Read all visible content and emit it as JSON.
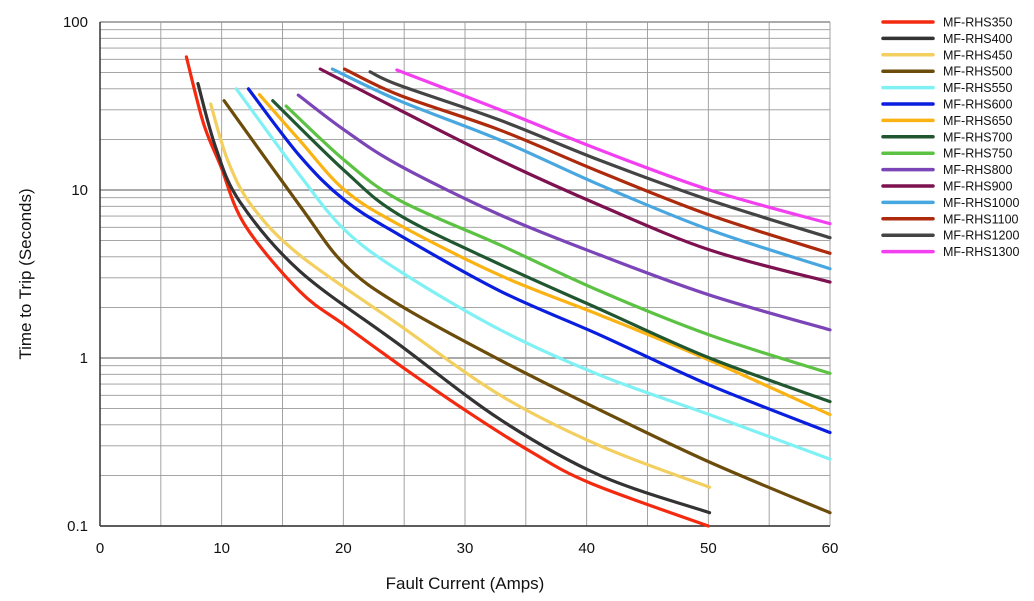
{
  "chart_data": {
    "type": "line",
    "title": "",
    "xlabel": "Fault Current (Amps)",
    "ylabel": "Time to Trip (Seconds)",
    "xlim": [
      0,
      60
    ],
    "ylim": [
      0.1,
      100
    ],
    "yscale": "log",
    "grid": true,
    "legend": "right",
    "xticks": [
      "0",
      "10",
      "20",
      "30",
      "40",
      "50",
      "60"
    ],
    "yticks": [
      "0.1",
      "1",
      "10",
      "100"
    ],
    "series": [
      {
        "name": "MF-RHS350",
        "color": "#f42a10",
        "x": [
          7.1,
          8.5,
          9.9,
          11.9,
          16.4,
          20.1,
          24.6,
          30,
          35.3,
          40.3,
          50
        ],
        "y": [
          62,
          25,
          14,
          6.2,
          2.5,
          1.57,
          0.91,
          0.49,
          0.28,
          0.18,
          0.1
        ]
      },
      {
        "name": "MF-RHS400",
        "color": "#333333",
        "x": [
          8.05,
          9.5,
          11.5,
          16.4,
          24.6,
          32.9,
          41.1,
          50.1
        ],
        "y": [
          43,
          18,
          8.5,
          3.3,
          1.2,
          0.43,
          0.2,
          0.12
        ]
      },
      {
        "name": "MF-RHS450",
        "color": "#f2cf5e",
        "x": [
          9.1,
          10.5,
          12.5,
          16.4,
          24.6,
          32.9,
          41.1,
          50.1
        ],
        "y": [
          32.5,
          15,
          8,
          4.1,
          1.57,
          0.6,
          0.3,
          0.17
        ]
      },
      {
        "name": "MF-RHS500",
        "color": "#6b4c0b",
        "x": [
          10.2,
          16.4,
          20.1,
          24.6,
          32.9,
          41.1,
          50.1,
          60
        ],
        "y": [
          34,
          8.1,
          3.6,
          2.07,
          0.97,
          0.49,
          0.24,
          0.12
        ]
      },
      {
        "name": "MF-RHS550",
        "color": "#7ff1f4",
        "x": [
          11.2,
          16.4,
          20.1,
          24.6,
          32.9,
          41.1,
          50.1,
          60
        ],
        "y": [
          40,
          12.3,
          5.8,
          3.3,
          1.47,
          0.79,
          0.46,
          0.25
        ]
      },
      {
        "name": "MF-RHS600",
        "color": "#0a1ee0",
        "x": [
          12.2,
          16.4,
          20.1,
          24.6,
          32.9,
          41.1,
          50.1,
          60
        ],
        "y": [
          40,
          16,
          8.7,
          5.4,
          2.5,
          1.37,
          0.69,
          0.36
        ]
      },
      {
        "name": "MF-RHS650",
        "color": "#fbb313",
        "x": [
          13.1,
          16.4,
          20.1,
          24.6,
          32.9,
          41.1,
          50.1,
          60
        ],
        "y": [
          37,
          19.8,
          10,
          6.2,
          3.1,
          1.8,
          0.97,
          0.46
        ]
      },
      {
        "name": "MF-RHS700",
        "color": "#215730",
        "x": [
          14.2,
          20.1,
          24.6,
          32.9,
          41.1,
          50.1,
          60
        ],
        "y": [
          34,
          13,
          7.1,
          3.6,
          1.95,
          1.0,
          0.55
        ]
      },
      {
        "name": "MF-RHS750",
        "color": "#5cc243",
        "x": [
          15.3,
          20.1,
          24.6,
          32.9,
          41.1,
          50.1,
          60
        ],
        "y": [
          31.6,
          15,
          8.7,
          4.7,
          2.5,
          1.37,
          0.81
        ]
      },
      {
        "name": "MF-RHS800",
        "color": "#7b45b7",
        "x": [
          16.3,
          20.1,
          24.6,
          32.9,
          41.1,
          50.1,
          60
        ],
        "y": [
          36.7,
          22.7,
          14,
          7.1,
          4.1,
          2.37,
          1.47
        ]
      },
      {
        "name": "MF-RHS900",
        "color": "#7e1150",
        "x": [
          18.1,
          24.6,
          32.9,
          41.1,
          50.1,
          60
        ],
        "y": [
          52.5,
          30,
          15,
          8.1,
          4.4,
          2.83
        ]
      },
      {
        "name": "MF-RHS1000",
        "color": "#49a7e0",
        "x": [
          19.1,
          24.6,
          32.9,
          41.1,
          50.1,
          60
        ],
        "y": [
          52.5,
          34,
          19.8,
          10.7,
          5.8,
          3.4
        ]
      },
      {
        "name": "MF-RHS1100",
        "color": "#ad2a0d",
        "x": [
          20.1,
          24.6,
          32.9,
          41.1,
          50.1,
          60
        ],
        "y": [
          52.5,
          36.7,
          22.7,
          12.8,
          7.1,
          4.2
        ]
      },
      {
        "name": "MF-RHS1200",
        "color": "#444444",
        "x": [
          22.2,
          24.6,
          32.9,
          41.1,
          50.1,
          60
        ],
        "y": [
          50.5,
          42,
          26,
          15,
          8.7,
          5.2
        ]
      },
      {
        "name": "MF-RHS1300",
        "color": "#f23ff0",
        "x": [
          24.4,
          32.9,
          41.1,
          50.1,
          60
        ],
        "y": [
          51.8,
          30,
          17.3,
          10,
          6.3
        ]
      }
    ]
  }
}
